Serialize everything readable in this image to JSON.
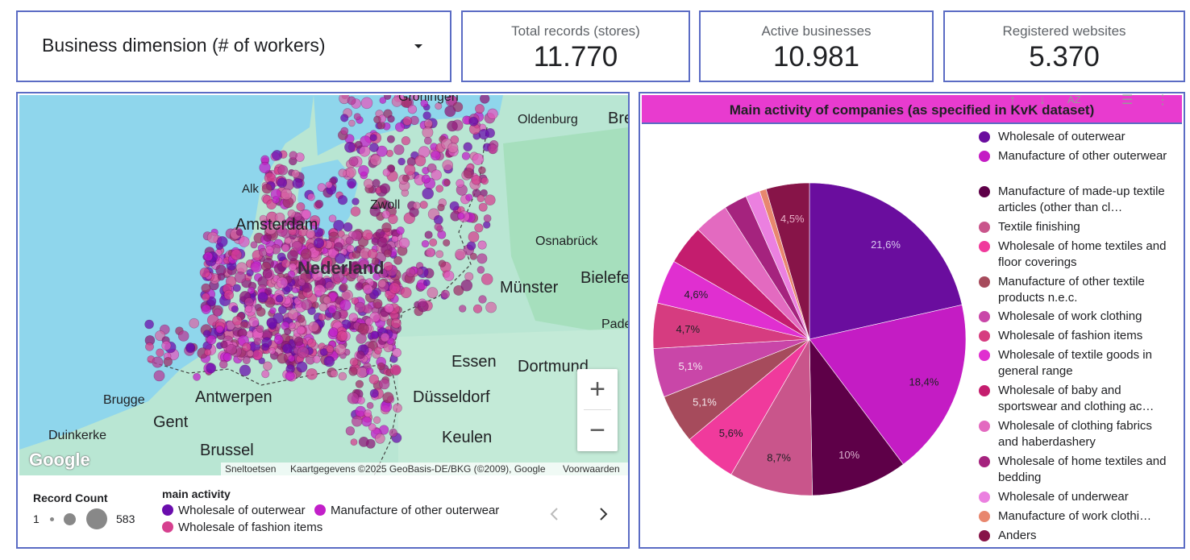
{
  "dropdown": {
    "label": "Business dimension (# of workers)"
  },
  "kpis": [
    {
      "label": "Total records (stores)",
      "value": "11.770"
    },
    {
      "label": "Active businesses",
      "value": "10.981"
    },
    {
      "label": "Registered websites",
      "value": "5.370"
    }
  ],
  "map": {
    "cities": {
      "groningen": "Groningen",
      "oldenburg": "Oldenburg",
      "bremen": "Bre",
      "alkmaar": "Alk",
      "amsterdam": "Amsterdam",
      "zwolle": "Zwoll",
      "osnabruck": "Osnabrück",
      "munster": "Münster",
      "bielefeld": "Bielefe",
      "paderborn": "Pade",
      "nederland": "Nederland",
      "essen": "Essen",
      "dortmund": "Dortmund",
      "dusseldorf": "Düsseldorf",
      "brugge": "Brugge",
      "antwerpen": "Antwerpen",
      "gent": "Gent",
      "duinkerke": "Duinkerke",
      "brussel": "Brussel",
      "keulen": "Keulen"
    },
    "google_watermark": "Google",
    "attribution": {
      "shortcuts": "Sneltoetsen",
      "mapdata": "Kaartgegevens ©2025 GeoBasis-DE/BKG (©2009), Google",
      "terms": "Voorwaarden"
    },
    "zoom_in": "+",
    "zoom_out": "−",
    "legend": {
      "size_title": "Record Count",
      "size_min": "1",
      "size_max": "583",
      "activity_title": "main activity",
      "items": [
        {
          "label": "Wholesale of outerwear",
          "color": "#6a0dad"
        },
        {
          "label": "Manufacture of other outerwear",
          "color": "#c21fc9"
        },
        {
          "label": "Wholesale of fashion items",
          "color": "#d6408f"
        }
      ],
      "prev_icon": "chevron-left-icon",
      "next_icon": "chevron-right-icon"
    }
  },
  "pie": {
    "title": "Main activity of companies (as specified in KvK dataset)"
  },
  "chart_data": {
    "type": "pie",
    "title": "Main activity of companies (as specified in KvK dataset)",
    "legend_position": "right",
    "slices": [
      {
        "label": "Wholesale of outerwear",
        "value": 21.6,
        "display": "21,6%",
        "color": "#6a0d9e",
        "label_color": "#d8c8ee"
      },
      {
        "label": "Manufacture of other outerwear",
        "value": 18.4,
        "display": "18,4%",
        "color": "#c41cc4",
        "label_color": "#202124"
      },
      {
        "label": "Manufacture of made-up textile articles (other than cl…",
        "value": 10.0,
        "display": "10%",
        "color": "#5e0048",
        "label_color": "#d8b0cc"
      },
      {
        "label": "Textile finishing",
        "value": 8.7,
        "display": "8,7%",
        "color": "#c9558b",
        "label_color": "#202124"
      },
      {
        "label": "Wholesale of home textiles and floor coverings",
        "value": 5.6,
        "display": "5,6%",
        "color": "#f03a9c",
        "label_color": "#202124"
      },
      {
        "label": "Manufacture of other textile products n.e.c.",
        "value": 5.1,
        "display": "5,1%",
        "color": "#a64b5c",
        "label_color": "#f2e6ea"
      },
      {
        "label": "Wholesale of work clothing",
        "value": 5.1,
        "display": "5,1%",
        "color": "#c946a8",
        "label_color": "#f5e6f2"
      },
      {
        "label": "Wholesale of fashion items",
        "value": 4.7,
        "display": "4,7%",
        "color": "#d63c80",
        "label_color": "#202124"
      },
      {
        "label": "Wholesale of textile goods in general range",
        "value": 4.6,
        "display": "4,6%",
        "color": "#e02fd0",
        "label_color": "#202124"
      },
      {
        "label": "Wholesale of baby and sportswear and clothing ac…",
        "value": 4.1,
        "display": "",
        "color": "#c41d6e",
        "label_color": "#202124"
      },
      {
        "label": "Wholesale of clothing fabrics and haberdashery",
        "value": 3.6,
        "display": "",
        "color": "#e36ac0",
        "label_color": "#202124"
      },
      {
        "label": "Wholesale of home textiles and bedding",
        "value": 2.4,
        "display": "",
        "color": "#a5237e",
        "label_color": "#202124"
      },
      {
        "label": "Wholesale of underwear",
        "value": 1.5,
        "display": "",
        "color": "#eb80e0",
        "label_color": "#202124"
      },
      {
        "label": "Manufacture of work clothi…",
        "value": 0.7,
        "display": "",
        "color": "#e8876e",
        "label_color": "#202124"
      },
      {
        "label": "Anders",
        "value": 4.5,
        "display": "4,5%",
        "color": "#871448",
        "label_color": "#e8b0c8"
      }
    ]
  }
}
